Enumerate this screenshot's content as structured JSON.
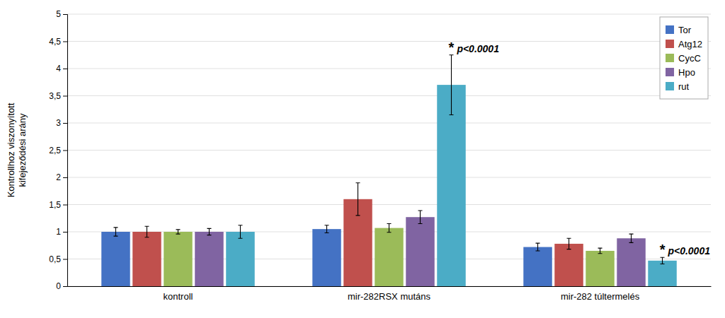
{
  "chart_data": {
    "type": "bar",
    "categories": [
      "kontroll",
      "mir-282RSX mutáns",
      "mir-282 túltermelés"
    ],
    "series": [
      {
        "name": "Tor",
        "color": "#4472C4",
        "values": [
          1.0,
          1.05,
          0.72
        ],
        "errors": [
          0.08,
          0.07,
          0.07
        ]
      },
      {
        "name": "Atg12",
        "color": "#C0504D",
        "values": [
          1.0,
          1.6,
          0.78
        ],
        "errors": [
          0.1,
          0.3,
          0.1
        ]
      },
      {
        "name": "CycC",
        "color": "#9BBB59",
        "values": [
          1.0,
          1.07,
          0.65
        ],
        "errors": [
          0.04,
          0.08,
          0.05
        ]
      },
      {
        "name": "Hpo",
        "color": "#8064A2",
        "values": [
          1.0,
          1.27,
          0.88
        ],
        "errors": [
          0.06,
          0.12,
          0.08
        ]
      },
      {
        "name": "rut",
        "color": "#4BACC6",
        "values": [
          1.0,
          3.7,
          0.47
        ],
        "errors": [
          0.12,
          0.55,
          0.06
        ]
      }
    ],
    "ylabel": "Kontrollhoz viszonyított\nkifejeződési arány",
    "ylim": [
      0,
      5
    ],
    "yticks": [
      0,
      {
        "value": 0.5,
        "label": "0,5"
      },
      1,
      {
        "value": 1.5,
        "label": "1,5"
      },
      2,
      {
        "value": 2.5,
        "label": "2,5"
      },
      3,
      {
        "value": 3.5,
        "label": "3,5"
      },
      4,
      {
        "value": 4.5,
        "label": "4,5"
      },
      5
    ],
    "grid": true,
    "legend": "upper right",
    "annotations": [
      {
        "text": "*",
        "category": "mir-282RSX mutáns",
        "series": "rut"
      },
      {
        "text": "p<0.0001",
        "category": "mir-282RSX mutáns",
        "series": "rut"
      },
      {
        "text": "*",
        "category": "mir-282 túltermelés",
        "series": "rut"
      },
      {
        "text": "p<0.0001",
        "category": "mir-282 túltermelés",
        "series": "rut"
      }
    ]
  }
}
